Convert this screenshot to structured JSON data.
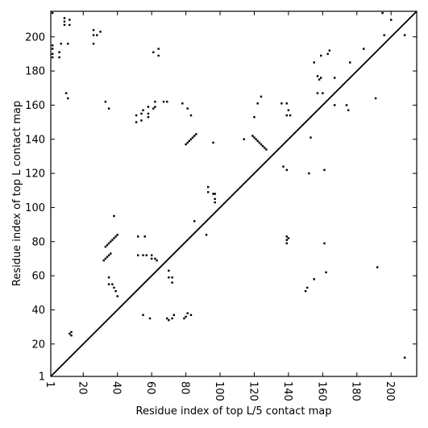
{
  "chart_data": {
    "type": "scatter",
    "title": "",
    "xlabel": "Residue index of top L/5 contact map",
    "ylabel": "Residue index of top L contact map",
    "xlim": [
      1,
      215
    ],
    "ylim": [
      1,
      215
    ],
    "x_ticks": [
      1,
      20,
      40,
      60,
      80,
      100,
      120,
      140,
      160,
      180,
      200
    ],
    "y_ticks": [
      1,
      20,
      40,
      60,
      80,
      100,
      120,
      140,
      160,
      180,
      200
    ],
    "diagonal_line": true,
    "grid": false,
    "legend": "none",
    "marker_color": "#000000",
    "upper_triangle_points": [
      [
        2,
        214
      ],
      [
        9,
        211
      ],
      [
        9,
        209
      ],
      [
        12,
        210
      ],
      [
        9,
        207
      ],
      [
        12,
        207
      ],
      [
        2,
        195
      ],
      [
        2,
        193
      ],
      [
        7,
        196
      ],
      [
        11,
        196
      ],
      [
        2,
        190
      ],
      [
        6,
        191
      ],
      [
        2,
        188
      ],
      [
        6,
        188
      ],
      [
        10,
        167
      ],
      [
        11,
        164
      ],
      [
        26,
        204
      ],
      [
        26,
        201
      ],
      [
        28,
        201
      ],
      [
        30,
        203
      ],
      [
        26,
        196
      ],
      [
        33,
        162
      ],
      [
        35,
        158
      ],
      [
        51,
        154
      ],
      [
        51,
        150
      ],
      [
        54,
        155
      ],
      [
        54,
        151
      ],
      [
        55,
        157
      ],
      [
        58,
        159
      ],
      [
        58,
        155
      ],
      [
        58,
        153
      ],
      [
        61,
        158
      ],
      [
        62,
        162
      ],
      [
        62,
        159
      ],
      [
        61,
        191
      ],
      [
        64,
        193
      ],
      [
        64,
        189
      ],
      [
        67,
        162
      ],
      [
        69,
        162
      ],
      [
        78,
        161
      ],
      [
        81,
        158
      ],
      [
        83,
        154
      ],
      [
        96,
        138
      ],
      [
        114,
        140
      ],
      [
        120,
        153
      ],
      [
        122,
        161
      ],
      [
        124,
        165
      ],
      [
        136,
        161
      ],
      [
        137,
        124
      ],
      [
        139,
        122
      ],
      [
        139,
        154
      ],
      [
        141,
        154
      ],
      [
        139,
        161
      ],
      [
        140,
        157
      ],
      [
        152,
        120
      ],
      [
        155,
        185
      ],
      [
        157,
        177
      ],
      [
        158,
        175
      ],
      [
        159,
        176
      ],
      [
        157,
        167
      ],
      [
        160,
        167
      ],
      [
        159,
        189
      ],
      [
        163,
        190
      ],
      [
        164,
        192
      ],
      [
        167,
        176
      ],
      [
        167,
        160
      ],
      [
        174,
        160
      ],
      [
        175,
        157
      ],
      [
        176,
        185
      ],
      [
        184,
        193
      ],
      [
        191,
        164
      ],
      [
        195,
        214
      ],
      [
        196,
        201
      ],
      [
        200,
        210
      ],
      [
        208,
        201
      ],
      [
        80,
        137
      ],
      [
        81,
        138
      ],
      [
        82,
        139
      ],
      [
        83,
        140
      ],
      [
        84,
        141
      ],
      [
        85,
        142
      ],
      [
        86,
        143
      ]
    ],
    "lower_triangle_points": [
      [
        12,
        26
      ],
      [
        13,
        25
      ],
      [
        13,
        27
      ],
      [
        32,
        69
      ],
      [
        33,
        70
      ],
      [
        34,
        71
      ],
      [
        35,
        72
      ],
      [
        36,
        73
      ],
      [
        33,
        77
      ],
      [
        34,
        78
      ],
      [
        35,
        79
      ],
      [
        36,
        80
      ],
      [
        37,
        81
      ],
      [
        38,
        82
      ],
      [
        39,
        83
      ],
      [
        40,
        84
      ],
      [
        35,
        59
      ],
      [
        35,
        55
      ],
      [
        37,
        55
      ],
      [
        38,
        53
      ],
      [
        39,
        51
      ],
      [
        40,
        48
      ],
      [
        38,
        95
      ],
      [
        52,
        83
      ],
      [
        56,
        83
      ],
      [
        52,
        72
      ],
      [
        55,
        72
      ],
      [
        57,
        72
      ],
      [
        60,
        72
      ],
      [
        60,
        70
      ],
      [
        62,
        70
      ],
      [
        63,
        69
      ],
      [
        55,
        37
      ],
      [
        59,
        35
      ],
      [
        70,
        63
      ],
      [
        70,
        59
      ],
      [
        72,
        59
      ],
      [
        72,
        56
      ],
      [
        69,
        35
      ],
      [
        70,
        34
      ],
      [
        72,
        35
      ],
      [
        73,
        37
      ],
      [
        79,
        35
      ],
      [
        80,
        36
      ],
      [
        81,
        38
      ],
      [
        83,
        37
      ],
      [
        85,
        92
      ],
      [
        92,
        84
      ],
      [
        93,
        112
      ],
      [
        93,
        109
      ],
      [
        96,
        108
      ],
      [
        97,
        108
      ],
      [
        97,
        105
      ],
      [
        97,
        103
      ],
      [
        119,
        142
      ],
      [
        120,
        141
      ],
      [
        121,
        140
      ],
      [
        122,
        139
      ],
      [
        123,
        138
      ],
      [
        124,
        137
      ],
      [
        125,
        136
      ],
      [
        126,
        135
      ],
      [
        127,
        134
      ],
      [
        139,
        83
      ],
      [
        139,
        81
      ],
      [
        140,
        82
      ],
      [
        139,
        79
      ],
      [
        150,
        51
      ],
      [
        151,
        53
      ],
      [
        153,
        141
      ],
      [
        155,
        58
      ],
      [
        161,
        122
      ],
      [
        161,
        79
      ],
      [
        162,
        62
      ],
      [
        192,
        65
      ],
      [
        208,
        12
      ]
    ]
  }
}
